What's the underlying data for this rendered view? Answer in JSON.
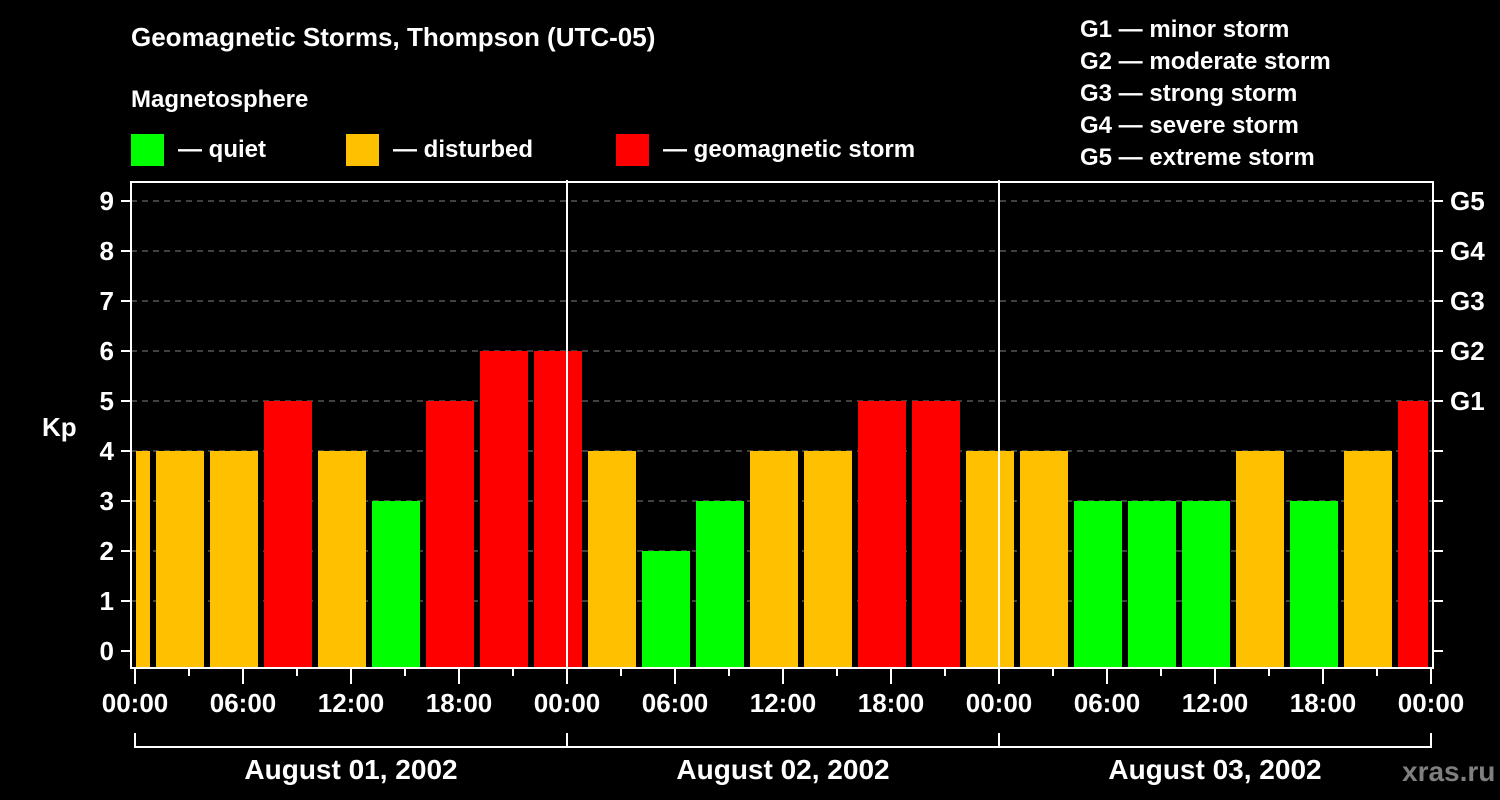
{
  "header": {
    "title": "Geomagnetic Storms, Thompson (UTC-05)",
    "subtitle": "Magnetosphere"
  },
  "legend": [
    {
      "label": "— quiet",
      "color": "#00ff00"
    },
    {
      "label": "— disturbed",
      "color": "#ffc000"
    },
    {
      "label": "— geomagnetic storm",
      "color": "#ff0000"
    }
  ],
  "g_scale": [
    "G1 — minor storm",
    "G2 — moderate storm",
    "G3 — strong storm",
    "G4 — severe storm",
    "G5 — extreme storm"
  ],
  "axes": {
    "ylabel": "Kp",
    "yticks": [
      "0",
      "1",
      "2",
      "3",
      "4",
      "5",
      "6",
      "7",
      "8",
      "9"
    ],
    "gticks": [
      "G1",
      "G2",
      "G3",
      "G4",
      "G5"
    ],
    "xticks": [
      "00:00",
      "06:00",
      "12:00",
      "18:00",
      "00:00",
      "06:00",
      "12:00",
      "18:00",
      "00:00",
      "06:00",
      "12:00",
      "18:00",
      "00:00"
    ],
    "dates": [
      "August 01, 2002",
      "August 02, 2002",
      "August 03, 2002"
    ]
  },
  "brand": "xras.ru",
  "colors": {
    "quiet": "#00ff00",
    "disturbed": "#ffc000",
    "storm": "#ff0000",
    "grid": "#808080"
  },
  "chart_data": {
    "type": "bar",
    "title": "Geomagnetic Storms, Thompson (UTC-05)",
    "subtitle": "Magnetosphere",
    "xlabel": "",
    "ylabel": "Kp",
    "ylim": [
      0,
      9
    ],
    "grid": true,
    "secondary_y_ticks": {
      "5": "G1",
      "6": "G2",
      "7": "G3",
      "8": "G4",
      "9": "G5"
    },
    "legend": [
      "quiet",
      "disturbed",
      "geomagnetic storm"
    ],
    "categories": [
      "Jul 31 22:00",
      "Aug 01 01:00",
      "Aug 01 04:00",
      "Aug 01 07:00",
      "Aug 01 10:00",
      "Aug 01 13:00",
      "Aug 01 16:00",
      "Aug 01 19:00",
      "Aug 01 22:00",
      "Aug 02 01:00",
      "Aug 02 04:00",
      "Aug 02 07:00",
      "Aug 02 10:00",
      "Aug 02 13:00",
      "Aug 02 16:00",
      "Aug 02 19:00",
      "Aug 02 22:00",
      "Aug 03 01:00",
      "Aug 03 04:00",
      "Aug 03 07:00",
      "Aug 03 10:00",
      "Aug 03 13:00",
      "Aug 03 16:00",
      "Aug 03 19:00",
      "Aug 03 22:00"
    ],
    "values": [
      4,
      4,
      4,
      5,
      4,
      3,
      5,
      6,
      6,
      4,
      2,
      3,
      4,
      4,
      5,
      5,
      4,
      4,
      3,
      3,
      3,
      4,
      3,
      4,
      5
    ],
    "status": [
      "disturbed",
      "disturbed",
      "disturbed",
      "storm",
      "disturbed",
      "quiet",
      "storm",
      "storm",
      "storm",
      "disturbed",
      "quiet",
      "quiet",
      "disturbed",
      "disturbed",
      "storm",
      "storm",
      "disturbed",
      "disturbed",
      "quiet",
      "quiet",
      "quiet",
      "disturbed",
      "quiet",
      "disturbed",
      "storm"
    ]
  }
}
